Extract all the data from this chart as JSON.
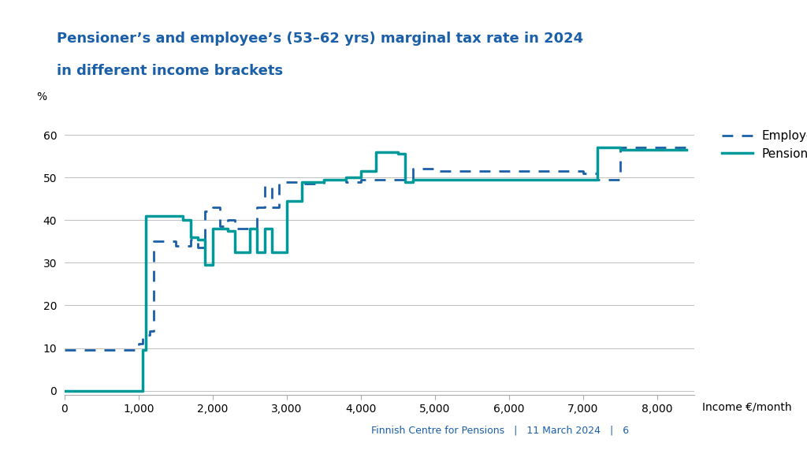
{
  "title_line1": "Pensioner’s and employee’s (53–62 yrs) marginal tax rate in 2024",
  "title_line2": "in different income brackets",
  "title_color": "#1a5fa8",
  "background_color": "#ffffff",
  "xlabel": "Income €/month",
  "ylabel": "%",
  "xlim": [
    0,
    8500
  ],
  "ylim": [
    -1,
    65
  ],
  "xticks": [
    0,
    1000,
    2000,
    3000,
    4000,
    5000,
    6000,
    7000,
    8000
  ],
  "xtick_labels": [
    "0",
    "1,000",
    "2,000",
    "3,000",
    "4,000",
    "5,000",
    "6,000",
    "7,000",
    "8,000"
  ],
  "yticks": [
    0,
    10,
    20,
    30,
    40,
    50,
    60
  ],
  "footer_text": "Finnish Centre for Pensions   |   11 March 2024   |   6",
  "footer_color": "#1a5fa8",
  "employee_color": "#1a5fa8",
  "pensioner_color": "#009999",
  "sidebar_color": "#1a5fa8",
  "employee_x": [
    0,
    1000,
    1000,
    1050,
    1050,
    1150,
    1150,
    1200,
    1200,
    1500,
    1500,
    1700,
    1700,
    1800,
    1800,
    1900,
    1900,
    2000,
    2000,
    2100,
    2100,
    2200,
    2200,
    2300,
    2300,
    2600,
    2600,
    2700,
    2700,
    2800,
    2800,
    2900,
    2900,
    3000,
    3000,
    3200,
    3200,
    3500,
    3500,
    3800,
    3800,
    4000,
    4000,
    4700,
    4700,
    5000,
    5000,
    7000,
    7000,
    7200,
    7200,
    7500,
    7500,
    8400
  ],
  "employee_y": [
    9.5,
    9.5,
    11,
    11,
    13,
    13,
    14,
    14,
    35,
    35,
    34,
    34,
    35.5,
    35.5,
    33.5,
    33.5,
    42,
    42,
    43,
    43,
    38.5,
    38.5,
    40,
    40,
    38,
    38,
    43,
    43,
    48,
    48,
    43,
    43,
    49,
    49,
    49,
    49,
    48.5,
    48.5,
    49.5,
    49.5,
    49,
    49,
    49.5,
    49.5,
    52,
    52,
    51.5,
    51.5,
    51,
    51,
    49.5,
    49.5,
    57,
    57
  ],
  "pensioner_x": [
    0,
    1050,
    1050,
    1100,
    1100,
    1500,
    1500,
    1600,
    1600,
    1700,
    1700,
    1800,
    1800,
    1900,
    1900,
    2000,
    2000,
    2200,
    2200,
    2300,
    2300,
    2500,
    2500,
    2600,
    2600,
    2700,
    2700,
    2800,
    2800,
    3000,
    3000,
    3200,
    3200,
    3500,
    3500,
    3800,
    3800,
    4000,
    4000,
    4200,
    4200,
    4500,
    4500,
    4600,
    4600,
    4700,
    4700,
    7200,
    7200,
    7500,
    7500,
    8400
  ],
  "pensioner_y": [
    0,
    0,
    9.5,
    9.5,
    41,
    41,
    41,
    41,
    40,
    40,
    36,
    36,
    35.5,
    35.5,
    29.5,
    29.5,
    38,
    38,
    37.5,
    37.5,
    32.5,
    32.5,
    38,
    38,
    32.5,
    32.5,
    38,
    38,
    32.5,
    32.5,
    44.5,
    44.5,
    49,
    49,
    49.5,
    49.5,
    50,
    50,
    51.5,
    51.5,
    56,
    56,
    55.5,
    55.5,
    49,
    49,
    49.5,
    49.5,
    57,
    57,
    56.5,
    56.5
  ]
}
